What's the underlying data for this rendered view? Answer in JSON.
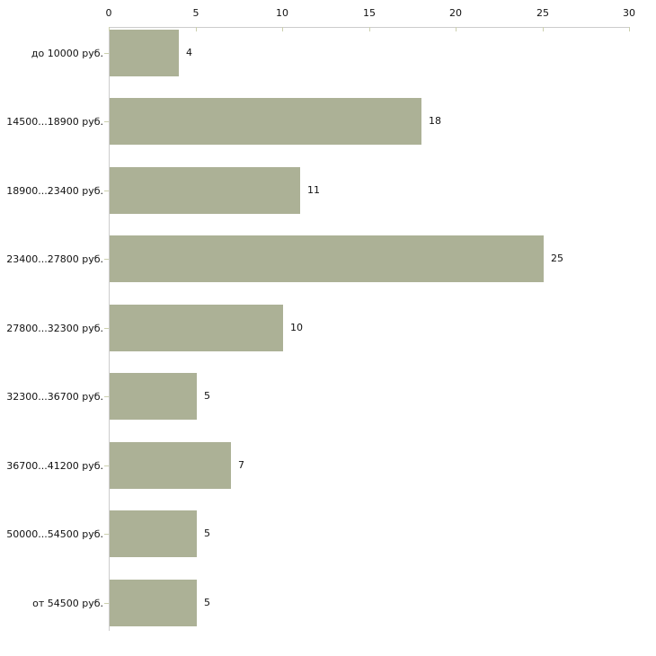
{
  "chart_data": {
    "type": "bar",
    "orientation": "horizontal",
    "title": "",
    "xlabel": "",
    "ylabel": "",
    "categories": [
      "до 10000 руб.",
      "14500...18900 руб.",
      "18900...23400 руб.",
      "23400...27800 руб.",
      "27800...32300 руб.",
      "32300...36700 руб.",
      "36700...41200 руб.",
      "50000...54500 руб.",
      "от 54500 руб."
    ],
    "values": [
      4,
      18,
      11,
      25,
      10,
      5,
      7,
      5,
      5
    ],
    "x_ticks": [
      "0",
      "5",
      "10",
      "15",
      "20",
      "25",
      "30"
    ],
    "xlim": [
      0,
      30
    ],
    "grid": false,
    "legend": null,
    "value_labels_shown": true,
    "colors": {
      "bar": "#acb196",
      "axis_line": "#cccccc",
      "tick_mark": "#ccd0ae",
      "text": "#111111",
      "background": "#ffffff"
    }
  }
}
